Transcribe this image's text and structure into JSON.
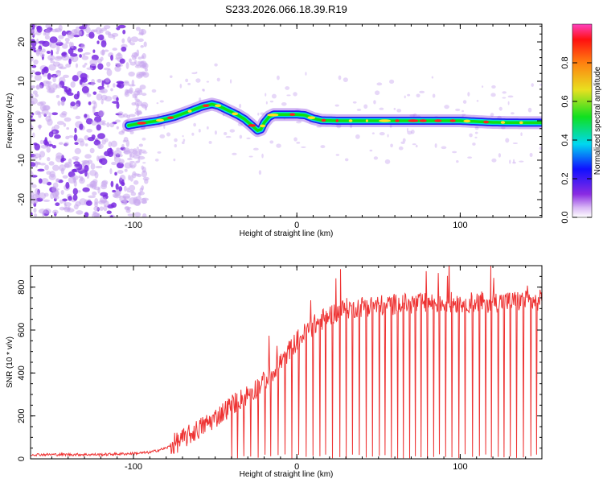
{
  "title": "S233.2026.066.18.39.R19",
  "colors": {
    "spectrum_ridge_outer": "#2020f0",
    "spectrum_ridge_mid": "#00e0e0",
    "spectrum_ridge_inner": "#10e010",
    "spectrum_peak": "#ff2020",
    "noise_dark": "#7a2ce0",
    "noise_light": "#c9a8ef",
    "snr_line": "#ee3333"
  },
  "chart_data": [
    {
      "type": "heatmap",
      "xlabel": "Height of straight line (km)",
      "ylabel": "Frequency (Hz)",
      "xlim": [
        -163,
        150
      ],
      "ylim": [
        -24.5,
        24.5
      ],
      "xticks": [
        -100,
        0,
        100
      ],
      "xtick_labels": [
        "-100",
        "0",
        "100"
      ],
      "yticks": [
        -20,
        -10,
        0,
        10,
        20
      ],
      "ytick_labels": [
        "-20",
        "-10",
        "0",
        "10",
        "20"
      ],
      "colorbar": {
        "label": "Normalized spectral amplitude",
        "range": [
          0,
          1
        ],
        "ticks": [
          0.0,
          0.2,
          0.4,
          0.6,
          0.8
        ],
        "tick_labels": [
          "0.0",
          "0.2",
          "0.4",
          "0.6",
          "0.8"
        ]
      },
      "ridge": {
        "x": [
          -103,
          -95,
          -85,
          -75,
          -65,
          -58,
          -52,
          -48,
          -44,
          -40,
          -36,
          -32,
          -28,
          -24,
          -22,
          -20,
          -17,
          -14,
          -12,
          -10,
          -5,
          0,
          5,
          10,
          15,
          25,
          40,
          60,
          80,
          100,
          120,
          140,
          148
        ],
        "freq": [
          -1.2,
          -0.6,
          0,
          1.0,
          2.5,
          3.6,
          4.2,
          3.8,
          3.0,
          2.2,
          1.4,
          0.4,
          -1.0,
          -2.5,
          -2.2,
          -0.5,
          1.0,
          1.6,
          1.6,
          1.6,
          1.6,
          1.6,
          1.4,
          0.6,
          0.1,
          0,
          0,
          0,
          0,
          0,
          -0.4,
          -0.5,
          -0.5
        ]
      },
      "noise_region_x": [
        -163,
        -100
      ]
    },
    {
      "type": "line",
      "xlabel": "Height of straight line (km)",
      "ylabel": "SNR (10 * v/v)",
      "xlim": [
        -163,
        150
      ],
      "ylim": [
        0,
        900
      ],
      "xticks": [
        -100,
        0,
        100
      ],
      "xtick_labels": [
        "-100",
        "0",
        "100"
      ],
      "yticks": [
        0,
        200,
        400,
        600,
        800
      ],
      "ytick_labels": [
        "0",
        "200",
        "400",
        "600",
        "800"
      ],
      "trend": {
        "x": [
          -163,
          -120,
          -100,
          -90,
          -80,
          -70,
          -60,
          -50,
          -40,
          -30,
          -20,
          -10,
          0,
          10,
          20,
          30,
          40,
          60,
          80,
          100,
          120,
          140,
          150
        ],
        "snr": [
          20,
          20,
          25,
          30,
          50,
          90,
          140,
          190,
          250,
          300,
          360,
          450,
          550,
          620,
          670,
          700,
          710,
          720,
          725,
          730,
          730,
          735,
          740
        ]
      },
      "dropouts_start_km": -40,
      "dropouts_spacing_km": 4,
      "noise_amplitude": 50
    }
  ]
}
